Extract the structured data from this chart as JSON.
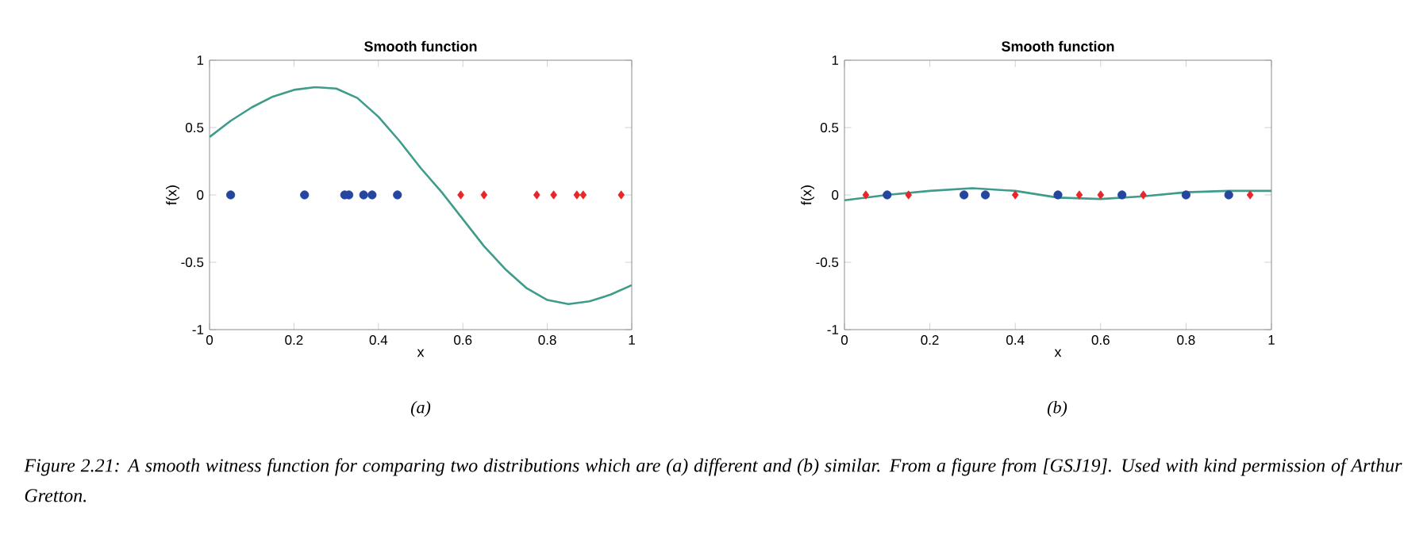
{
  "chart_data": [
    {
      "type": "scatter",
      "title": "Smooth function",
      "xlabel": "x",
      "ylabel": "f(x)",
      "xlim": [
        0,
        1
      ],
      "ylim": [
        -1,
        1
      ],
      "xticks": [
        0,
        0.2,
        0.4,
        0.6,
        0.8,
        1
      ],
      "yticks": [
        -1,
        -0.5,
        0,
        0.5,
        1
      ],
      "grid": false,
      "legend": false,
      "series": [
        {
          "type": "line",
          "color": "#3f9c8a",
          "marker": "none",
          "x": [
            0,
            0.05,
            0.1,
            0.15,
            0.2,
            0.25,
            0.3,
            0.35,
            0.4,
            0.45,
            0.5,
            0.55,
            0.6,
            0.65,
            0.7,
            0.75,
            0.8,
            0.85,
            0.9,
            0.95,
            1
          ],
          "values": [
            0.43,
            0.55,
            0.65,
            0.73,
            0.78,
            0.8,
            0.79,
            0.72,
            0.58,
            0.4,
            0.2,
            0.02,
            -0.18,
            -0.38,
            -0.55,
            -0.69,
            -0.78,
            -0.81,
            -0.79,
            -0.74,
            -0.67
          ]
        },
        {
          "color": "#2546a0",
          "marker": "circle",
          "x": [
            0.05,
            0.225,
            0.32,
            0.33,
            0.365,
            0.385,
            0.445
          ],
          "values": [
            0,
            0,
            0,
            0,
            0,
            0,
            0
          ]
        },
        {
          "color": "#e8262a",
          "marker": "diamond",
          "x": [
            0.595,
            0.65,
            0.775,
            0.815,
            0.87,
            0.885,
            0.975
          ],
          "values": [
            0,
            0,
            0,
            0,
            0,
            0,
            0
          ]
        }
      ],
      "annotations": [
        "(a)"
      ]
    },
    {
      "type": "scatter",
      "title": "Smooth function",
      "xlabel": "x",
      "ylabel": "f(x)",
      "xlim": [
        0,
        1
      ],
      "ylim": [
        -1,
        1
      ],
      "xticks": [
        0,
        0.2,
        0.4,
        0.6,
        0.8,
        1
      ],
      "yticks": [
        -1,
        -0.5,
        0,
        0.5,
        1
      ],
      "grid": false,
      "legend": false,
      "series": [
        {
          "type": "line",
          "color": "#3f9c8a",
          "marker": "none",
          "x": [
            0,
            0.1,
            0.2,
            0.3,
            0.4,
            0.5,
            0.6,
            0.7,
            0.8,
            0.9,
            1
          ],
          "values": [
            -0.04,
            0.0,
            0.03,
            0.05,
            0.03,
            -0.02,
            -0.03,
            -0.01,
            0.02,
            0.03,
            0.03
          ]
        },
        {
          "color": "#2546a0",
          "marker": "circle",
          "x": [
            0.1,
            0.28,
            0.33,
            0.5,
            0.65,
            0.8,
            0.9
          ],
          "values": [
            0,
            0,
            0,
            0,
            0,
            0,
            0
          ]
        },
        {
          "color": "#e8262a",
          "marker": "diamond",
          "x": [
            0.05,
            0.15,
            0.4,
            0.55,
            0.6,
            0.7,
            0.95
          ],
          "values": [
            0,
            0,
            0,
            0,
            0,
            0,
            0
          ]
        }
      ],
      "annotations": [
        "(b)",
        "Figure 2.21: A smooth witness function for comparing two distributions which are (a) different and (b) similar. From a figure from [GSJ19]. Used with kind permission of Arthur Gretton."
      ]
    }
  ]
}
